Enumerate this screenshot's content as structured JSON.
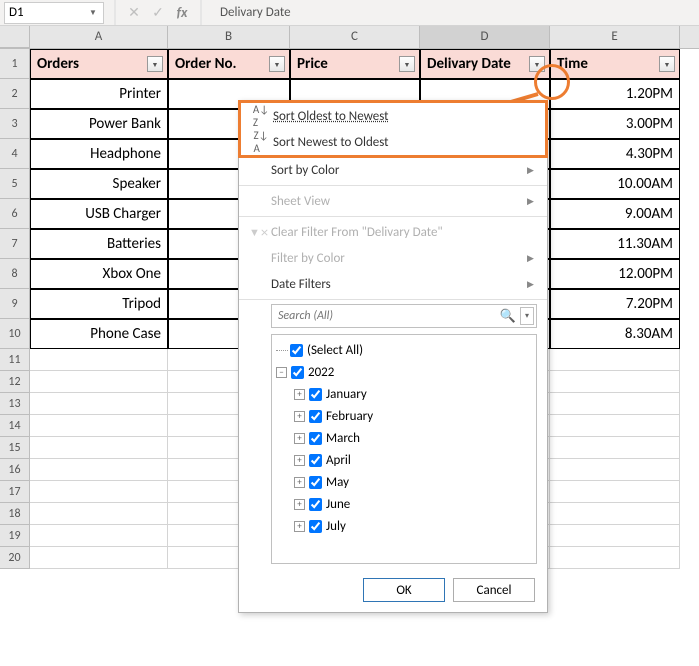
{
  "nameBox": "D1",
  "formulaBar": "Delivary Date",
  "columns": [
    "A",
    "B",
    "C",
    "D",
    "E"
  ],
  "selectedCol": "D",
  "headerRow": {
    "A": "Orders",
    "B": "Order No.",
    "C": "Price",
    "D": "Delivary Date",
    "E": "Time"
  },
  "dataRows": [
    {
      "A": "Printer",
      "E": "1.20PM"
    },
    {
      "A": "Power Bank",
      "E": "3.00PM"
    },
    {
      "A": "Headphone",
      "E": "4.30PM"
    },
    {
      "A": "Speaker",
      "E": "10.00AM"
    },
    {
      "A": "USB Charger",
      "E": "9.00AM"
    },
    {
      "A": "Batteries",
      "E": "11.30AM"
    },
    {
      "A": "Xbox One",
      "E": "12.00PM"
    },
    {
      "A": "Tripod",
      "E": "7.20PM"
    },
    {
      "A": "Phone Case",
      "E": "8.30AM"
    }
  ],
  "emptyRows": 10,
  "menu": {
    "sortAsc": "Sort Oldest to Newest",
    "sortDesc": "Sort Newest to Oldest",
    "sortColor": "Sort by Color",
    "sheetView": "Sheet View",
    "clearFilter": "Clear Filter From \"Delivary Date\"",
    "filterColor": "Filter by Color",
    "dateFilters": "Date Filters",
    "searchPlaceholder": "Search (All)",
    "selectAll": "(Select All)",
    "year": "2022",
    "months": [
      "January",
      "February",
      "March",
      "April",
      "May",
      "June",
      "July"
    ],
    "ok": "OK",
    "cancel": "Cancel"
  },
  "colors": {
    "headerFill": "#fadbd6",
    "highlight": "#ed7d31"
  },
  "colWidths": {
    "A": 138,
    "B": 122,
    "C": 130,
    "D": 130,
    "E": 130
  },
  "rowHeightData": 30
}
